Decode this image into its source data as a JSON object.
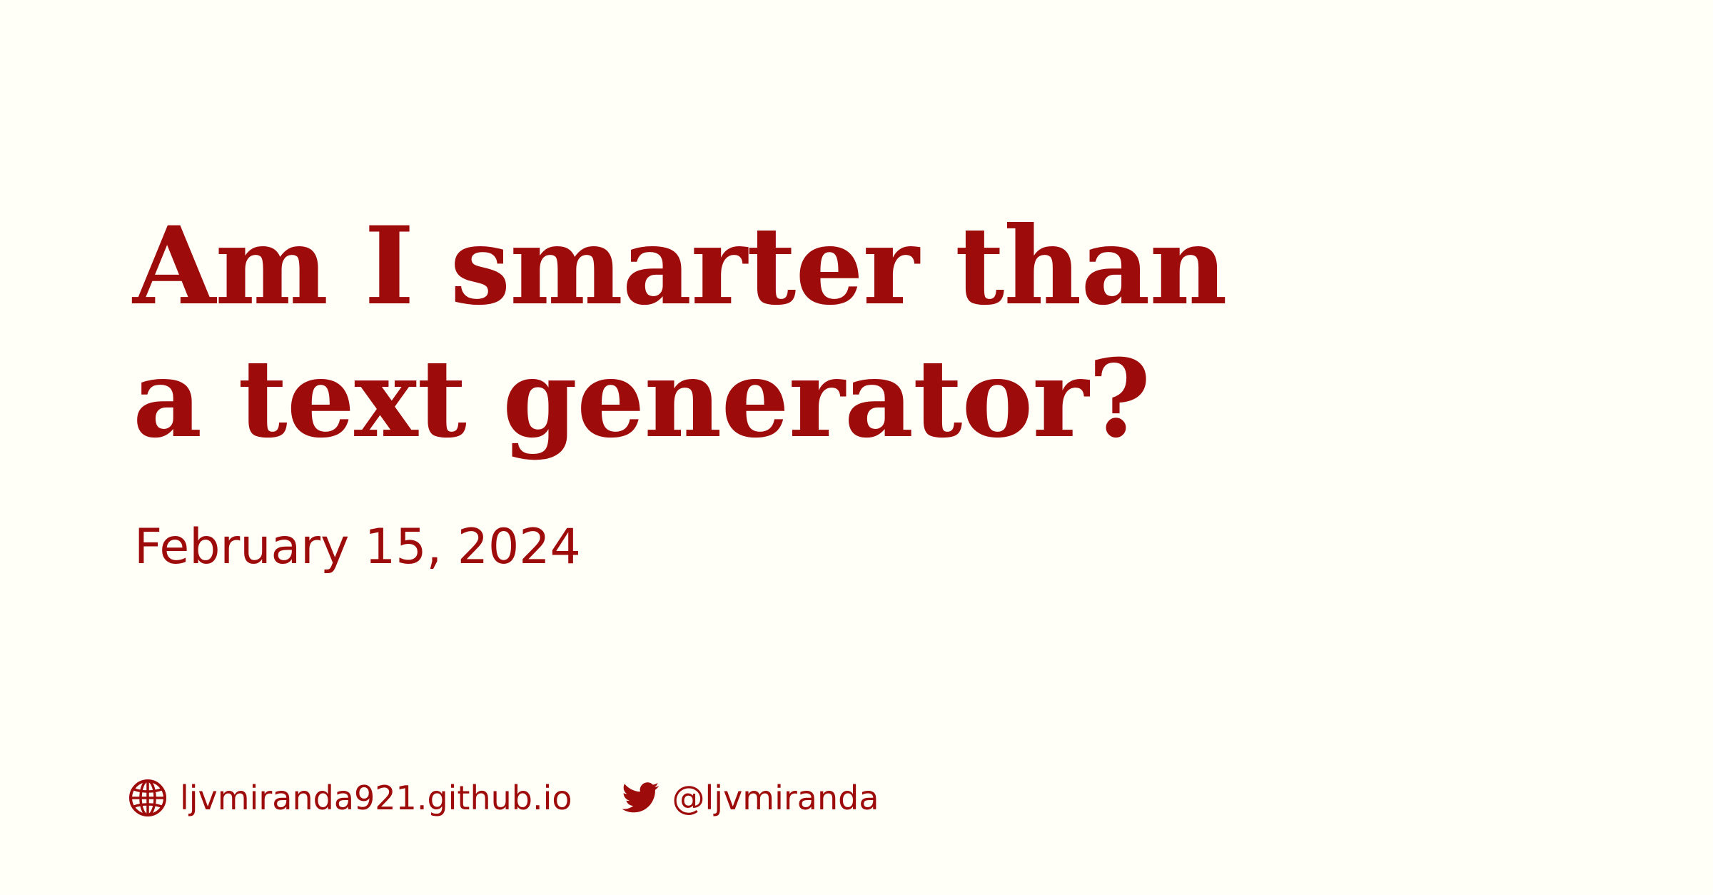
{
  "card": {
    "title_line_1": "Am I smarter than",
    "title_line_2": "a text generator?",
    "date": "February 15, 2024"
  },
  "footer": {
    "website": {
      "icon": "globe-icon",
      "label": "ljvmiranda921.github.io"
    },
    "twitter": {
      "icon": "twitter-icon",
      "label": "@ljvmiranda"
    }
  },
  "colors": {
    "background": "#fffef7",
    "accent": "#9e0b0b"
  }
}
